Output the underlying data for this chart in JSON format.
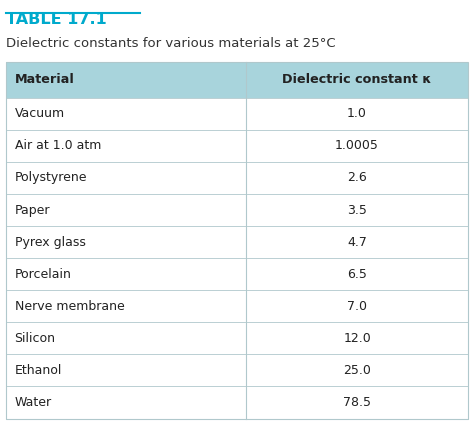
{
  "title": "TABLE 17.1",
  "subtitle": "Dielectric constants for various materials at 25°C",
  "col1_header": "Material",
  "col2_header": "Dielectric constant κ",
  "rows": [
    [
      "Vacuum",
      "1.0"
    ],
    [
      "Air at 1.0 atm",
      "1.0005"
    ],
    [
      "Polystyrene",
      "2.6"
    ],
    [
      "Paper",
      "3.5"
    ],
    [
      "Pyrex glass",
      "4.7"
    ],
    [
      "Porcelain",
      "6.5"
    ],
    [
      "Nerve membrane",
      "7.0"
    ],
    [
      "Silicon",
      "12.0"
    ],
    [
      "Ethanol",
      "25.0"
    ],
    [
      "Water",
      "78.5"
    ]
  ],
  "header_bg": "#a8d4dc",
  "row_line_color": "#b0c8cc",
  "title_color": "#00aacc",
  "text_color": "#222222",
  "subtitle_color": "#333333",
  "col2_header_bold_part": "Dielectric constant ",
  "col2_header_italic_part": "κ",
  "background_color": "#ffffff",
  "col_split": 0.52
}
